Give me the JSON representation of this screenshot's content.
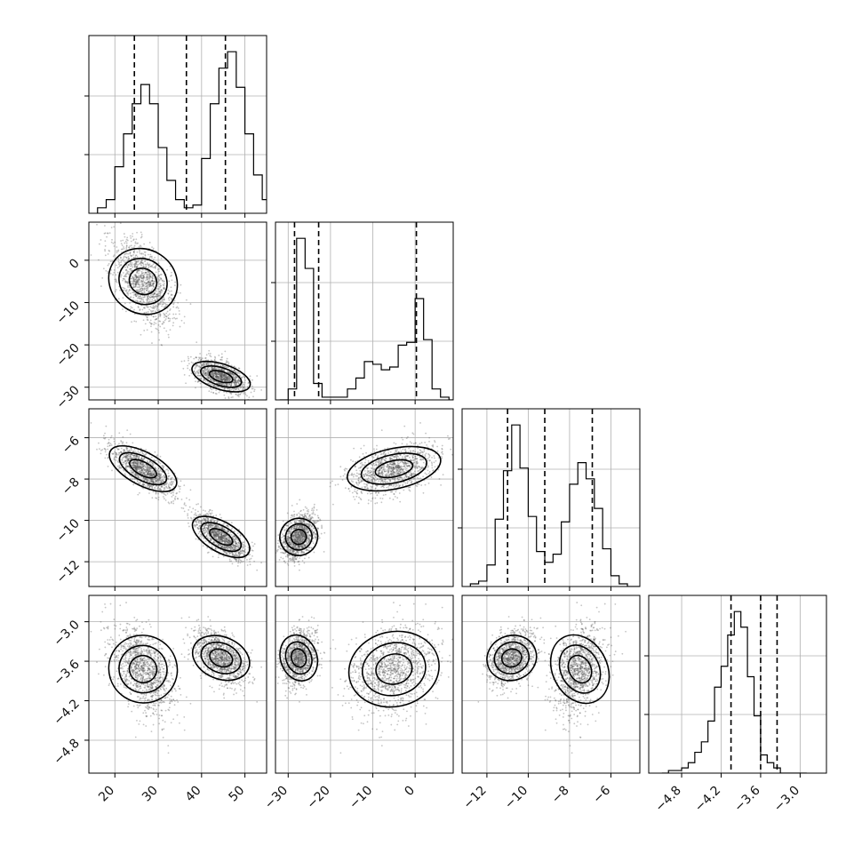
{
  "chart_data": {
    "type": "corner",
    "title": "",
    "parameters": [
      {
        "name": "",
        "range": [
          14,
          55
        ],
        "ticks": [
          20,
          30,
          40,
          50
        ],
        "tick_labels": [
          "20",
          "30",
          "40",
          "50"
        ],
        "quantiles": [
          24.5,
          36.5,
          45.5
        ],
        "histogram": {
          "bin_start": 16,
          "bin_width": 2,
          "counts": [
            2,
            5,
            17,
            29,
            40,
            47,
            40,
            24,
            12,
            5,
            2,
            3,
            20,
            40,
            53,
            59,
            46,
            29,
            14,
            5,
            2,
            0
          ]
        }
      },
      {
        "name": "",
        "range": [
          -33,
          9
        ],
        "ticks": [
          -30,
          -20,
          -10,
          0
        ],
        "tick_labels": [
          "−30",
          "−20",
          "−10",
          "0"
        ],
        "quantiles": [
          -28.5,
          -22.8,
          0.3
        ],
        "histogram": {
          "bin_start": -32,
          "bin_width": 2,
          "counts": [
            0,
            4,
            59,
            48,
            6,
            1,
            1,
            1,
            4,
            8,
            14,
            13,
            11,
            12,
            20,
            21,
            37,
            22,
            4,
            1,
            0
          ]
        }
      },
      {
        "name": "",
        "range": [
          -13.2,
          -4.6
        ],
        "ticks": [
          -12,
          -10,
          -8,
          -6
        ],
        "tick_labels": [
          "−12",
          "−10",
          "−8",
          "−6"
        ],
        "quantiles": [
          -11.0,
          -9.2,
          -6.9
        ],
        "histogram": {
          "bin_start": -12.8,
          "bin_width": 0.4,
          "counts": [
            1,
            2,
            8,
            25,
            43,
            60,
            44,
            26,
            13,
            9,
            12,
            24,
            38,
            46,
            40,
            29,
            14,
            4,
            1,
            0,
            0
          ]
        }
      },
      {
        "name": "",
        "range": [
          -5.3,
          -2.6
        ],
        "ticks": [
          -4.8,
          -4.2,
          -3.6,
          -3.0
        ],
        "tick_labels": [
          "−4.8",
          "−4.2",
          "−3.6",
          "−3.0"
        ],
        "quantiles": [
          -4.05,
          -3.6,
          -3.35
        ],
        "histogram": {
          "bin_start": -5.1,
          "bin_width": 0.1,
          "counts": [
            0,
            1,
            1,
            2,
            4,
            8,
            12,
            20,
            33,
            41,
            53,
            62,
            56,
            37,
            22,
            7,
            4,
            2,
            0,
            0,
            0,
            0
          ]
        }
      }
    ],
    "clusters": [
      {
        "means": [
          26.5,
          -5,
          -7.5,
          -3.72
        ],
        "stds": [
          3.5,
          5,
          0.6,
          0.32
        ],
        "weight": 0.5
      },
      {
        "means": [
          44.5,
          -27.5,
          -10.8,
          -3.55
        ],
        "stds": [
          3.0,
          2.0,
          0.55,
          0.2
        ],
        "weight": 0.5
      }
    ],
    "grid": true,
    "contour_levels": 3,
    "axis_labels": {
      "x": [],
      "y": []
    }
  }
}
